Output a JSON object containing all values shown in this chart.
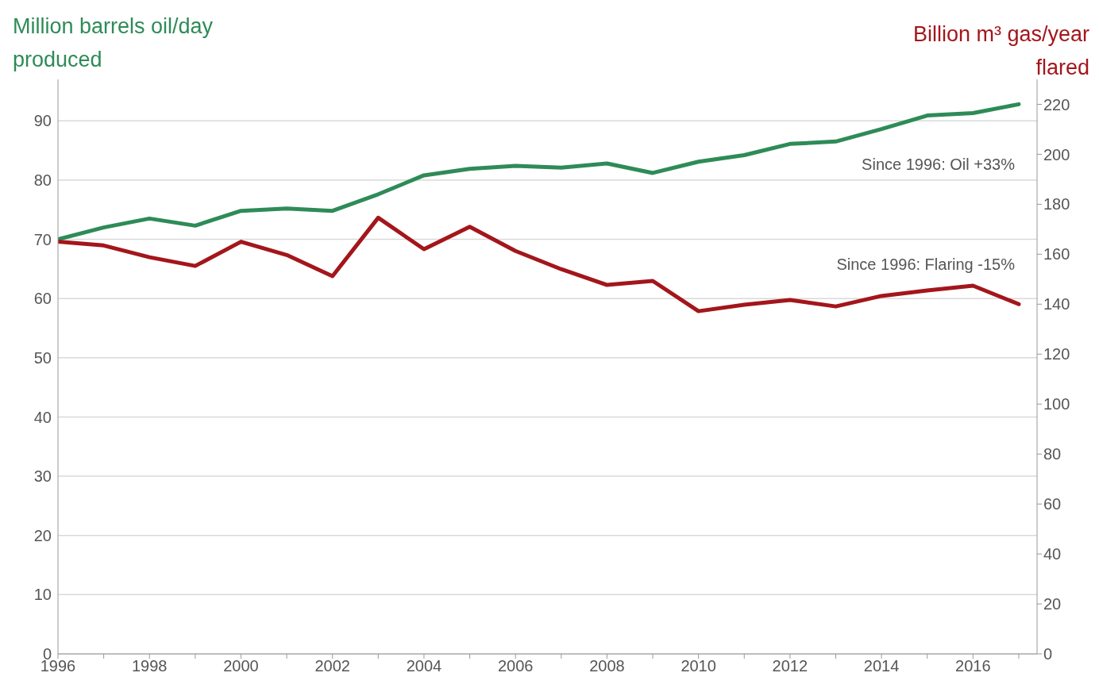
{
  "chart_data": {
    "type": "line",
    "ylabel": "Million barrels oil/day produced",
    "y2label": "Billion m³ gas/year flared",
    "x": [
      1996,
      1997,
      1998,
      1999,
      2000,
      2001,
      2002,
      2003,
      2004,
      2005,
      2006,
      2007,
      2008,
      2009,
      2010,
      2011,
      2012,
      2013,
      2014,
      2015,
      2016,
      2017
    ],
    "series": [
      {
        "color": "#2e8b57",
        "values": [
          70,
          72,
          73.5,
          72.3,
          74.8,
          75.2,
          74.8,
          77.6,
          80.8,
          81.9,
          82.4,
          82.1,
          82.8,
          81.2,
          83.1,
          84.2,
          86.1,
          86.5,
          88.6,
          90.9,
          91.3,
          92.8
        ]
      },
      {
        "color": "#a3161b",
        "axis": "y2",
        "values": [
          165,
          163.5,
          158.8,
          155.3,
          165,
          159.7,
          151.2,
          174.6,
          162,
          171,
          161.3,
          154,
          147.7,
          149.3,
          137.2,
          139.8,
          141.7,
          139.1,
          143.3,
          145.5,
          147.4,
          140
        ]
      }
    ],
    "xlim": [
      1996,
      2017.4
    ],
    "xticks": [
      1996,
      {
        "value": 1997,
        "label": null
      },
      1998,
      {
        "value": 1999,
        "label": null
      },
      2000,
      {
        "value": 2001,
        "label": null
      },
      2002,
      {
        "value": 2003,
        "label": null
      },
      2004,
      {
        "value": 2005,
        "label": null
      },
      2006,
      {
        "value": 2007,
        "label": null
      },
      2008,
      {
        "value": 2009,
        "label": null
      },
      2010,
      {
        "value": 2011,
        "label": null
      },
      2012,
      {
        "value": 2013,
        "label": null
      },
      2014,
      {
        "value": 2015,
        "label": null
      },
      2016,
      {
        "value": 2017,
        "label": null
      }
    ],
    "ylim": [
      0,
      97
    ],
    "yticks": [
      0,
      10,
      20,
      30,
      40,
      50,
      60,
      70,
      80,
      90
    ],
    "y2lim": [
      0,
      230
    ],
    "y2ticks": [
      0,
      20,
      40,
      60,
      80,
      100,
      120,
      140,
      160,
      180,
      200,
      220
    ],
    "grid": "y",
    "marker": "none",
    "line_style": "solid",
    "annotations": [
      "Since 1996: Oil +33%",
      "Since 1996: Flaring -15%"
    ]
  }
}
